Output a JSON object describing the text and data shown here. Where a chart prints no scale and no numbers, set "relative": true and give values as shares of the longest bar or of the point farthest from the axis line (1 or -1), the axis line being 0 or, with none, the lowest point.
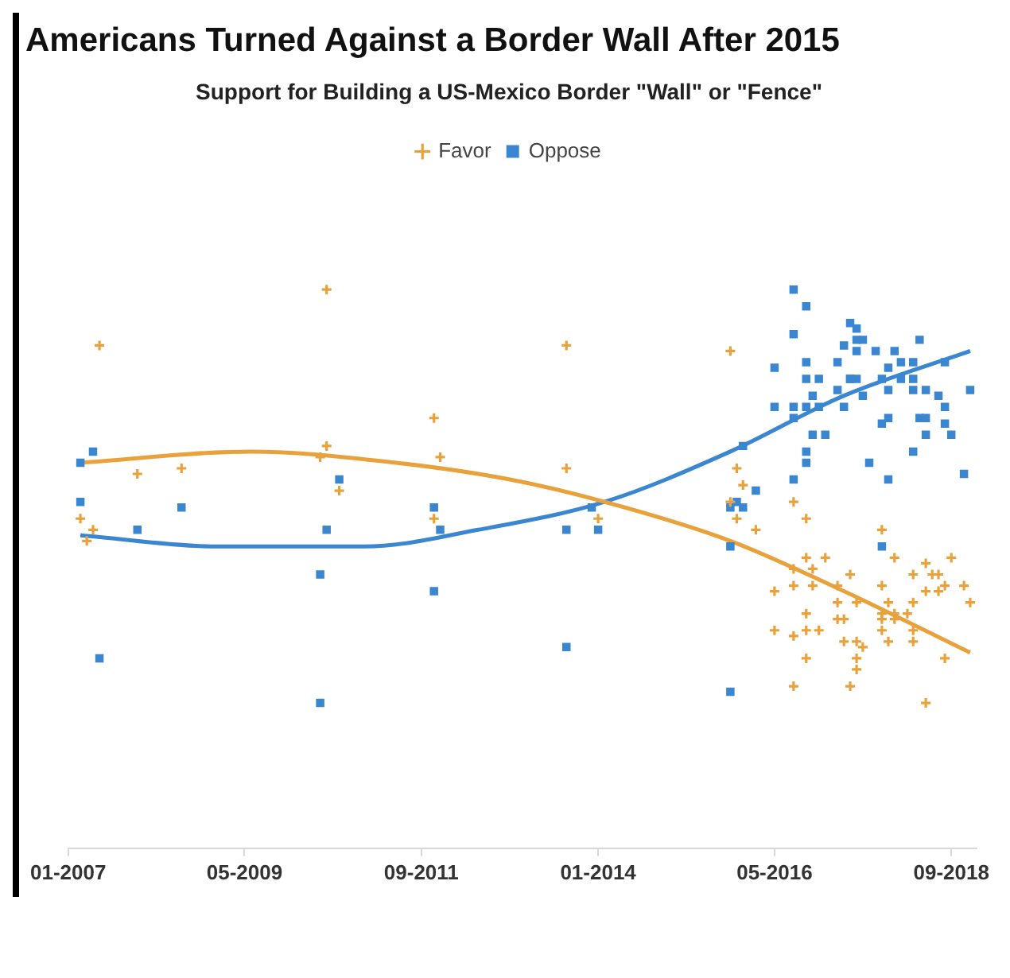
{
  "chart_data": {
    "type": "scatter",
    "title": "Americans Turned Against a Border Wall After 2015",
    "subtitle": "Support for Building a US-Mexico Border \"Wall\" or \"Fence\"",
    "relative": true,
    "grid": false,
    "legend": "top",
    "tick_labels": "x",
    "xlim": [
      "2007-01",
      "2019-01"
    ],
    "xticks": [
      {
        "value": "2007-01",
        "label": "01-2007"
      },
      {
        "value": "2009-05",
        "label": "05-2009"
      },
      {
        "value": "2011-09",
        "label": "09-2011"
      },
      {
        "value": "2014-01",
        "label": "01-2014"
      },
      {
        "value": "2016-05",
        "label": "05-2016"
      },
      {
        "value": "2018-09",
        "label": "09-2018"
      }
    ],
    "series": [
      {
        "name": "Favor",
        "color": "#e9a23b",
        "marker": "cross",
        "x": [
          "2007-06",
          "2010-06",
          "2011-11",
          "2011-12",
          "2010-06",
          "2010-05",
          "2010-08",
          "2007-12",
          "2008-07",
          "2007-03",
          "2007-05",
          "2007-04",
          "2011-11",
          "2013-08",
          "2013-08",
          "2014-01",
          "2015-10",
          "2015-11",
          "2015-12",
          "2015-10",
          "2015-11",
          "2016-08",
          "2016-10",
          "2016-02",
          "2016-10",
          "2017-01",
          "2016-08",
          "2016-11",
          "2016-08",
          "2016-11",
          "2017-03",
          "2017-05",
          "2017-03",
          "2017-06",
          "2016-05",
          "2016-10",
          "2016-05",
          "2016-08",
          "2016-10",
          "2016-12",
          "2017-03",
          "2017-04",
          "2017-04",
          "2017-06",
          "2016-10",
          "2017-06",
          "2016-08",
          "2017-05",
          "2017-10",
          "2017-12",
          "2018-09",
          "2017-10",
          "2018-03",
          "2018-05",
          "2018-06",
          "2018-07",
          "2018-08",
          "2018-11",
          "2018-12",
          "2018-05",
          "2018-07",
          "2018-03",
          "2017-11",
          "2017-10",
          "2017-12",
          "2018-02",
          "2017-10",
          "2017-12",
          "2017-10",
          "2018-03",
          "2018-03",
          "2017-11",
          "2017-07",
          "2018-08",
          "2017-06",
          "2018-05"
        ],
        "values": [
          0.9,
          1.0,
          0.77,
          0.7,
          0.72,
          0.7,
          0.64,
          0.67,
          0.68,
          0.59,
          0.57,
          0.55,
          0.59,
          0.9,
          0.68,
          0.59,
          0.89,
          0.68,
          0.65,
          0.62,
          0.59,
          0.62,
          0.59,
          0.57,
          0.52,
          0.52,
          0.5,
          0.5,
          0.47,
          0.47,
          0.47,
          0.49,
          0.44,
          0.44,
          0.46,
          0.42,
          0.39,
          0.38,
          0.39,
          0.39,
          0.41,
          0.41,
          0.37,
          0.37,
          0.34,
          0.34,
          0.29,
          0.29,
          0.57,
          0.52,
          0.52,
          0.47,
          0.49,
          0.51,
          0.49,
          0.49,
          0.47,
          0.47,
          0.44,
          0.46,
          0.46,
          0.44,
          0.44,
          0.42,
          0.42,
          0.42,
          0.41,
          0.41,
          0.39,
          0.39,
          0.37,
          0.37,
          0.36,
          0.34,
          0.32,
          0.26
        ]
      },
      {
        "name": "Oppose",
        "color": "#3b86d1",
        "marker": "square",
        "x": [
          "2007-03",
          "2007-05",
          "2007-03",
          "2007-12",
          "2008-07",
          "2007-06",
          "2010-06",
          "2010-08",
          "2010-05",
          "2010-05",
          "2011-11",
          "2011-12",
          "2011-11",
          "2013-08",
          "2013-08",
          "2013-12",
          "2014-01",
          "2015-10",
          "2015-10",
          "2015-11",
          "2015-10",
          "2015-12",
          "2015-12",
          "2016-02",
          "2016-08",
          "2016-10",
          "2016-08",
          "2016-05",
          "2016-10",
          "2016-10",
          "2016-12",
          "2017-06",
          "2017-04",
          "2017-06",
          "2017-03",
          "2017-05",
          "2017-03",
          "2016-05",
          "2016-08",
          "2016-10",
          "2016-11",
          "2016-12",
          "2017-04",
          "2016-08",
          "2016-11",
          "2017-01",
          "2016-10",
          "2016-10",
          "2016-08",
          "2017-05",
          "2017-06",
          "2017-09",
          "2017-12",
          "2018-04",
          "2017-07",
          "2017-05",
          "2017-06",
          "2017-10",
          "2017-11",
          "2018-01",
          "2018-03",
          "2018-01",
          "2018-03",
          "2018-03",
          "2018-05",
          "2017-11",
          "2017-07",
          "2018-07",
          "2018-08",
          "2018-08",
          "2018-12",
          "2017-11",
          "2017-10",
          "2018-04",
          "2018-05",
          "2018-05",
          "2018-08",
          "2018-09",
          "2018-03",
          "2017-08",
          "2017-11",
          "2018-11",
          "2017-10"
        ],
        "values": [
          0.69,
          0.71,
          0.62,
          0.57,
          0.61,
          0.34,
          0.57,
          0.66,
          0.49,
          0.26,
          0.61,
          0.57,
          0.46,
          0.57,
          0.36,
          0.61,
          0.57,
          0.54,
          0.28,
          0.62,
          0.61,
          0.61,
          0.72,
          0.64,
          1.0,
          0.97,
          0.92,
          0.86,
          0.87,
          0.84,
          0.84,
          0.93,
          0.9,
          0.89,
          0.87,
          0.84,
          0.82,
          0.79,
          0.79,
          0.79,
          0.81,
          0.79,
          0.79,
          0.77,
          0.74,
          0.74,
          0.71,
          0.69,
          0.66,
          0.94,
          0.91,
          0.89,
          0.89,
          0.91,
          0.91,
          0.84,
          0.84,
          0.84,
          0.86,
          0.87,
          0.87,
          0.84,
          0.84,
          0.82,
          0.82,
          0.82,
          0.81,
          0.81,
          0.79,
          0.87,
          0.82,
          0.77,
          0.76,
          0.77,
          0.77,
          0.74,
          0.76,
          0.74,
          0.71,
          0.69,
          0.66,
          0.67,
          0.54
        ]
      },
      {
        "type": "line",
        "color": "#e9a23b",
        "marker": "none",
        "x": [
          "2007-03",
          "2009-06",
          "2011-05",
          "2012-11",
          "2014-02",
          "2015-10",
          "2017-04",
          "2018-12"
        ],
        "values": [
          0.69,
          0.71,
          0.69,
          0.66,
          0.62,
          0.55,
          0.46,
          0.35
        ]
      },
      {
        "type": "line",
        "color": "#3b86d1",
        "marker": "none",
        "x": [
          "2007-03",
          "2009-01",
          "2010-12",
          "2012-06",
          "2014-02",
          "2015-10",
          "2017-04",
          "2018-12"
        ],
        "values": [
          0.56,
          0.54,
          0.54,
          0.57,
          0.62,
          0.71,
          0.81,
          0.89
        ]
      }
    ]
  }
}
